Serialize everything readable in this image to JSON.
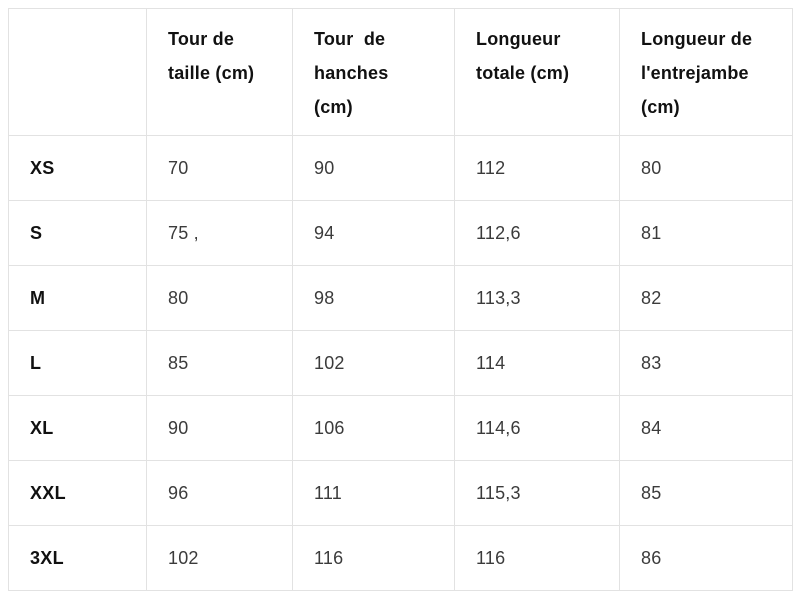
{
  "colors": {
    "background": "#ffffff",
    "border": "#e2e2e2",
    "header_text": "#111111",
    "value_text": "#3b3b3b"
  },
  "table": {
    "headers": [
      "",
      "Tour de\ntaille (cm)",
      "Tour  de\nhanches\n(cm)",
      "Longueur\ntotale (cm)",
      "Longueur de\nl'entrejambe\n(cm)"
    ],
    "rows": [
      {
        "size": "XS",
        "values": [
          "70",
          "90",
          "112",
          "80"
        ]
      },
      {
        "size": "S",
        "values": [
          "75 ,",
          "94",
          "112,6",
          "81"
        ]
      },
      {
        "size": "M",
        "values": [
          "80",
          "98",
          "113,3",
          "82"
        ]
      },
      {
        "size": "L",
        "values": [
          "85",
          "102",
          "114",
          "83"
        ]
      },
      {
        "size": "XL",
        "values": [
          "90",
          "106",
          "114,6",
          "84"
        ]
      },
      {
        "size": "XXL",
        "values": [
          "96",
          "111",
          "115,3",
          "85"
        ]
      },
      {
        "size": "3XL",
        "values": [
          "102",
          "116",
          "116",
          "86"
        ]
      }
    ]
  },
  "chart_data": {
    "type": "table",
    "columns": [
      "",
      "Tour de taille (cm)",
      "Tour de hanches (cm)",
      "Longueur totale (cm)",
      "Longueur de l'entrejambe (cm)"
    ],
    "rows": [
      [
        "XS",
        70,
        90,
        112,
        80
      ],
      [
        "S",
        75,
        94,
        112.6,
        81
      ],
      [
        "M",
        80,
        98,
        113.3,
        82
      ],
      [
        "L",
        85,
        102,
        114,
        83
      ],
      [
        "XL",
        90,
        106,
        114.6,
        84
      ],
      [
        "XXL",
        96,
        111,
        115.3,
        85
      ],
      [
        "3XL",
        102,
        116,
        116,
        86
      ]
    ]
  }
}
